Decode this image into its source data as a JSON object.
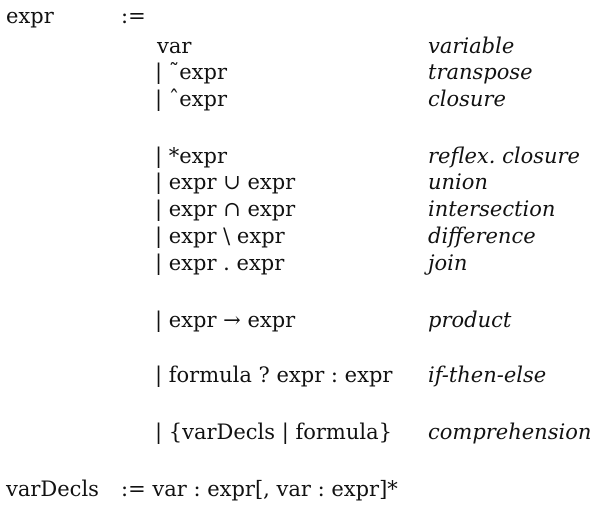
{
  "grammar": {
    "lhs": "expr",
    "define": ":=",
    "rules": [
      {
        "form": "var",
        "meaning": "variable"
      },
      {
        "form": "| ˜expr",
        "meaning": "transpose"
      },
      {
        "form": "| ˆexpr",
        "meaning": "closure"
      },
      {
        "form": "| *expr",
        "meaning": "reflex. closure"
      },
      {
        "form": "| expr ∪ expr",
        "meaning": "union"
      },
      {
        "form": "| expr ∩ expr",
        "meaning": "intersection"
      },
      {
        "form": "| expr \\ expr",
        "meaning": "difference"
      },
      {
        "form": "| expr . expr",
        "meaning": "join"
      },
      {
        "form": "| expr → expr",
        "meaning": "product"
      },
      {
        "form": "| formula ? expr : expr",
        "meaning": "if-then-else"
      },
      {
        "form": "| {varDecls | formula}",
        "meaning": "comprehension"
      }
    ],
    "decl": {
      "lhs": "varDecls",
      "rhs": ":= var : expr[, var : expr]*"
    }
  }
}
